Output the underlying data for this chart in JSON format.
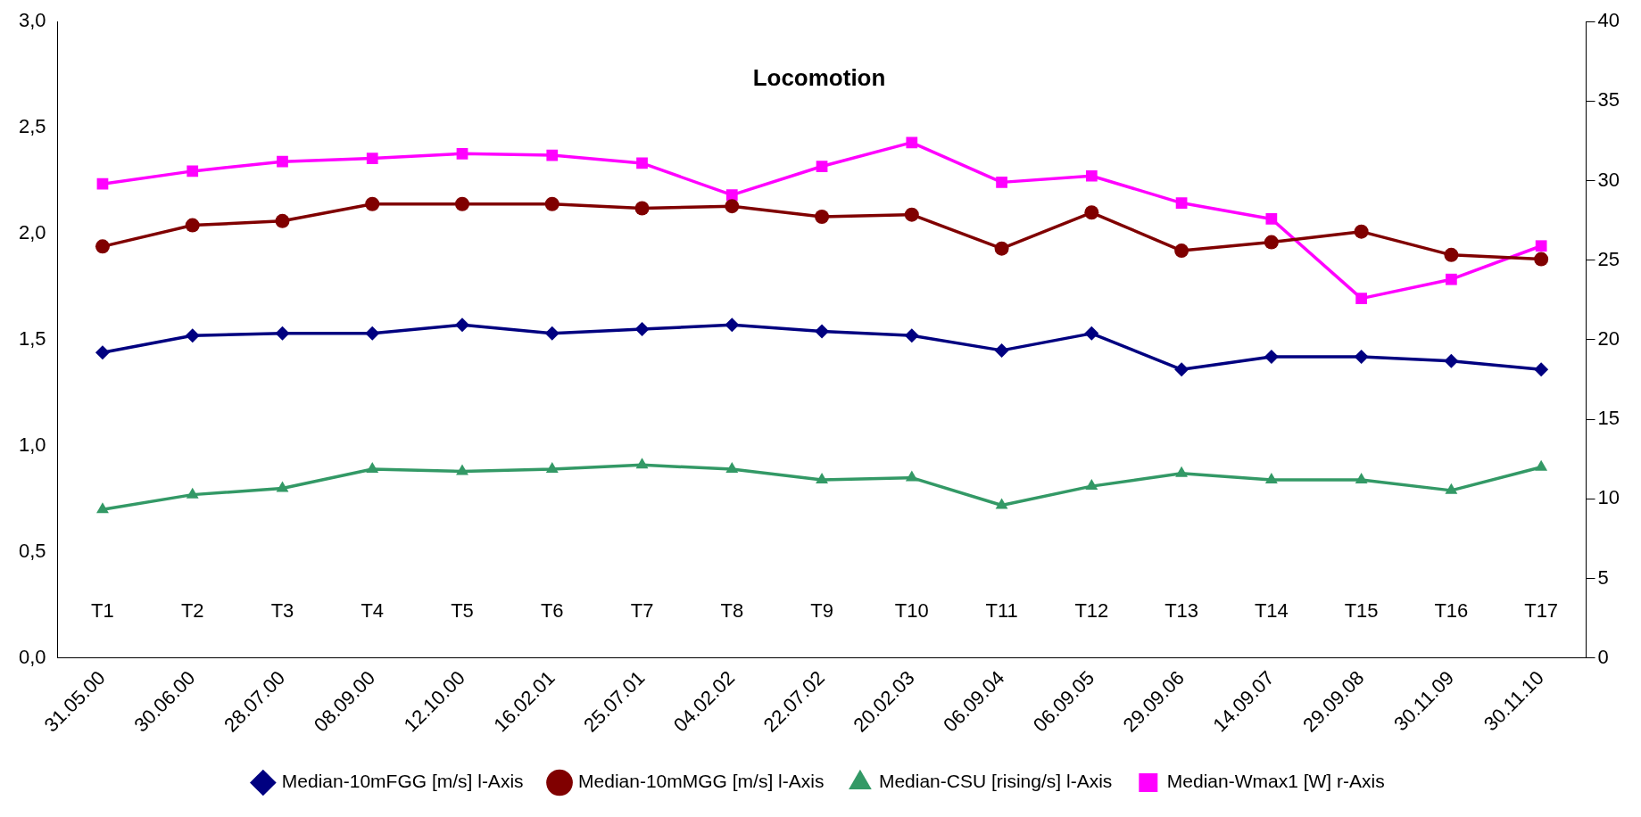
{
  "chart_data": {
    "type": "line",
    "title": "Locomotion",
    "categories": [
      "31.05.00",
      "30.06.00",
      "28.07.00",
      "08.09.00",
      "12.10.00",
      "16.02.01",
      "25.07.01",
      "04.02.02",
      "22.07.02",
      "20.02.03",
      "06.09.04",
      "06.09.05",
      "29.09.06",
      "14.09.07",
      "29.09.08",
      "30.11.09",
      "30.11.10"
    ],
    "series": [
      {
        "name": "Median-10mFGG [m/s] l-Axis",
        "color": "#000080",
        "marker": "diamond",
        "values": [
          1.44,
          1.52,
          1.53,
          1.53,
          1.57,
          1.53,
          1.55,
          1.57,
          1.54,
          1.52,
          1.45,
          1.53,
          1.36,
          1.42,
          1.42,
          1.4,
          1.36
        ]
      },
      {
        "name": "Median-10mMGG [m/s] l-Axis",
        "color": "#800000",
        "marker": "circle",
        "values": [
          1.94,
          2.04,
          2.06,
          2.14,
          2.14,
          2.14,
          2.12,
          2.13,
          2.08,
          2.09,
          1.93,
          2.1,
          1.92,
          1.96,
          2.01,
          1.9,
          1.88
        ]
      },
      {
        "name": "Median-CSU [rising/s] l-Axis",
        "color": "#339966",
        "marker": "triangle",
        "values": [
          0.7,
          0.77,
          0.8,
          0.89,
          0.88,
          0.89,
          0.91,
          0.89,
          0.84,
          0.85,
          0.72,
          0.81,
          0.87,
          0.84,
          0.84,
          0.79,
          0.9
        ]
      },
      {
        "name": "Median-Wmax1 [W] r-Axis",
        "color": "#ff00ff",
        "marker": "square",
        "axis": "y2",
        "values": [
          29.8,
          30.6,
          31.2,
          31.4,
          31.7,
          31.6,
          31.1,
          29.1,
          30.9,
          32.4,
          29.9,
          30.3,
          28.6,
          27.6,
          22.6,
          23.8,
          25.9
        ]
      }
    ],
    "ylim": [
      0,
      3
    ],
    "yticks": [
      {
        "value": 0,
        "label": "0,0"
      },
      {
        "value": 0.5,
        "label": "0,5"
      },
      {
        "value": 1,
        "label": "1,0"
      },
      {
        "value": 1.5,
        "label": "1,5"
      },
      {
        "value": 2,
        "label": "2,0"
      },
      {
        "value": 2.5,
        "label": "2,5"
      },
      {
        "value": 3,
        "label": "3,0"
      }
    ],
    "y2lim": [
      0,
      40
    ],
    "y2ticks": [
      0,
      5,
      10,
      15,
      20,
      25,
      30,
      35,
      40
    ],
    "annotations": [
      "T1",
      "T2",
      "T3",
      "T4",
      "T5",
      "T6",
      "T7",
      "T8",
      "T9",
      "T10",
      "T11",
      "T12",
      "T13",
      "T14",
      "T15",
      "T16",
      "T17"
    ],
    "grid": false,
    "legend": "bottom",
    "line_style": "solid"
  }
}
